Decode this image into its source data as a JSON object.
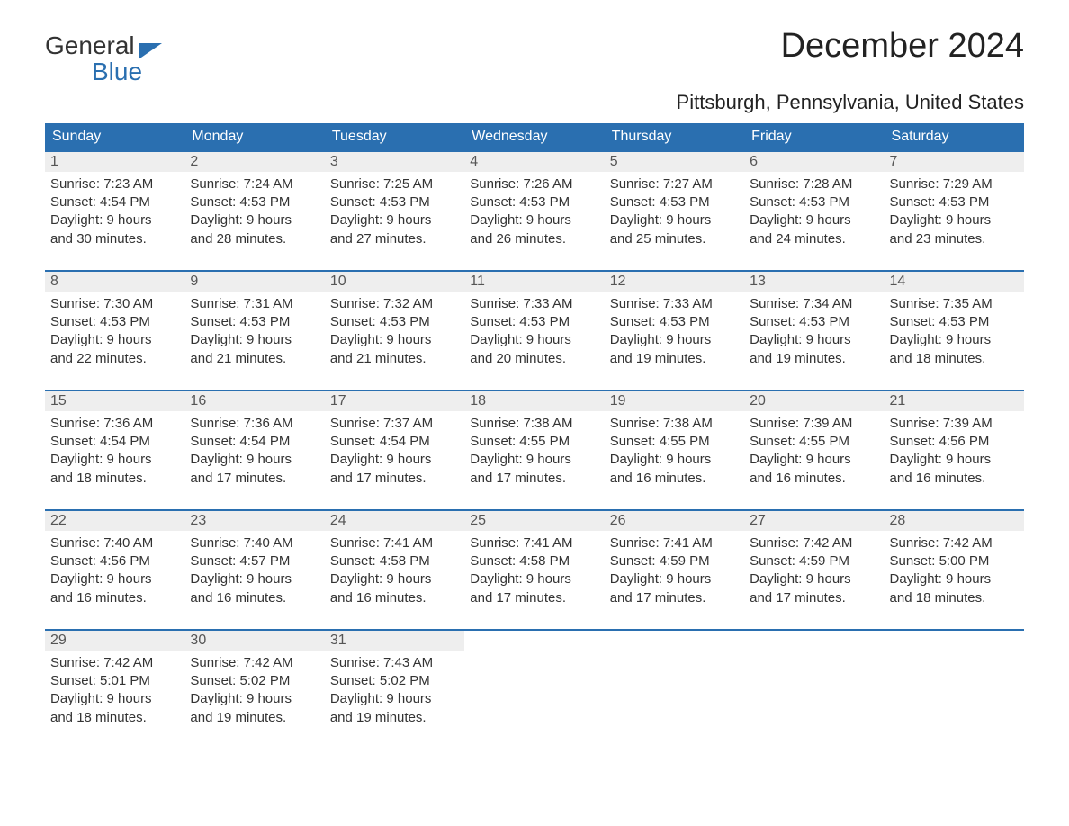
{
  "logo": {
    "line1": "General",
    "line2": "Blue",
    "accent_color": "#2a6fb0"
  },
  "title": "December 2024",
  "location": "Pittsburgh, Pennsylvania, United States",
  "colors": {
    "header_bg": "#2a6fb0",
    "header_text": "#ffffff",
    "daynum_bg": "#eeeeee",
    "daynum_text": "#555555",
    "body_text": "#333333",
    "rule": "#2a6fb0",
    "page_bg": "#ffffff"
  },
  "typography": {
    "title_fontsize": 38,
    "location_fontsize": 22,
    "dayname_fontsize": 16,
    "daynum_fontsize": 16,
    "cell_fontsize": 15
  },
  "day_names": [
    "Sunday",
    "Monday",
    "Tuesday",
    "Wednesday",
    "Thursday",
    "Friday",
    "Saturday"
  ],
  "weeks": [
    [
      {
        "date": "1",
        "sunrise": "Sunrise: 7:23 AM",
        "sunset": "Sunset: 4:54 PM",
        "daylight1": "Daylight: 9 hours",
        "daylight2": "and 30 minutes."
      },
      {
        "date": "2",
        "sunrise": "Sunrise: 7:24 AM",
        "sunset": "Sunset: 4:53 PM",
        "daylight1": "Daylight: 9 hours",
        "daylight2": "and 28 minutes."
      },
      {
        "date": "3",
        "sunrise": "Sunrise: 7:25 AM",
        "sunset": "Sunset: 4:53 PM",
        "daylight1": "Daylight: 9 hours",
        "daylight2": "and 27 minutes."
      },
      {
        "date": "4",
        "sunrise": "Sunrise: 7:26 AM",
        "sunset": "Sunset: 4:53 PM",
        "daylight1": "Daylight: 9 hours",
        "daylight2": "and 26 minutes."
      },
      {
        "date": "5",
        "sunrise": "Sunrise: 7:27 AM",
        "sunset": "Sunset: 4:53 PM",
        "daylight1": "Daylight: 9 hours",
        "daylight2": "and 25 minutes."
      },
      {
        "date": "6",
        "sunrise": "Sunrise: 7:28 AM",
        "sunset": "Sunset: 4:53 PM",
        "daylight1": "Daylight: 9 hours",
        "daylight2": "and 24 minutes."
      },
      {
        "date": "7",
        "sunrise": "Sunrise: 7:29 AM",
        "sunset": "Sunset: 4:53 PM",
        "daylight1": "Daylight: 9 hours",
        "daylight2": "and 23 minutes."
      }
    ],
    [
      {
        "date": "8",
        "sunrise": "Sunrise: 7:30 AM",
        "sunset": "Sunset: 4:53 PM",
        "daylight1": "Daylight: 9 hours",
        "daylight2": "and 22 minutes."
      },
      {
        "date": "9",
        "sunrise": "Sunrise: 7:31 AM",
        "sunset": "Sunset: 4:53 PM",
        "daylight1": "Daylight: 9 hours",
        "daylight2": "and 21 minutes."
      },
      {
        "date": "10",
        "sunrise": "Sunrise: 7:32 AM",
        "sunset": "Sunset: 4:53 PM",
        "daylight1": "Daylight: 9 hours",
        "daylight2": "and 21 minutes."
      },
      {
        "date": "11",
        "sunrise": "Sunrise: 7:33 AM",
        "sunset": "Sunset: 4:53 PM",
        "daylight1": "Daylight: 9 hours",
        "daylight2": "and 20 minutes."
      },
      {
        "date": "12",
        "sunrise": "Sunrise: 7:33 AM",
        "sunset": "Sunset: 4:53 PM",
        "daylight1": "Daylight: 9 hours",
        "daylight2": "and 19 minutes."
      },
      {
        "date": "13",
        "sunrise": "Sunrise: 7:34 AM",
        "sunset": "Sunset: 4:53 PM",
        "daylight1": "Daylight: 9 hours",
        "daylight2": "and 19 minutes."
      },
      {
        "date": "14",
        "sunrise": "Sunrise: 7:35 AM",
        "sunset": "Sunset: 4:53 PM",
        "daylight1": "Daylight: 9 hours",
        "daylight2": "and 18 minutes."
      }
    ],
    [
      {
        "date": "15",
        "sunrise": "Sunrise: 7:36 AM",
        "sunset": "Sunset: 4:54 PM",
        "daylight1": "Daylight: 9 hours",
        "daylight2": "and 18 minutes."
      },
      {
        "date": "16",
        "sunrise": "Sunrise: 7:36 AM",
        "sunset": "Sunset: 4:54 PM",
        "daylight1": "Daylight: 9 hours",
        "daylight2": "and 17 minutes."
      },
      {
        "date": "17",
        "sunrise": "Sunrise: 7:37 AM",
        "sunset": "Sunset: 4:54 PM",
        "daylight1": "Daylight: 9 hours",
        "daylight2": "and 17 minutes."
      },
      {
        "date": "18",
        "sunrise": "Sunrise: 7:38 AM",
        "sunset": "Sunset: 4:55 PM",
        "daylight1": "Daylight: 9 hours",
        "daylight2": "and 17 minutes."
      },
      {
        "date": "19",
        "sunrise": "Sunrise: 7:38 AM",
        "sunset": "Sunset: 4:55 PM",
        "daylight1": "Daylight: 9 hours",
        "daylight2": "and 16 minutes."
      },
      {
        "date": "20",
        "sunrise": "Sunrise: 7:39 AM",
        "sunset": "Sunset: 4:55 PM",
        "daylight1": "Daylight: 9 hours",
        "daylight2": "and 16 minutes."
      },
      {
        "date": "21",
        "sunrise": "Sunrise: 7:39 AM",
        "sunset": "Sunset: 4:56 PM",
        "daylight1": "Daylight: 9 hours",
        "daylight2": "and 16 minutes."
      }
    ],
    [
      {
        "date": "22",
        "sunrise": "Sunrise: 7:40 AM",
        "sunset": "Sunset: 4:56 PM",
        "daylight1": "Daylight: 9 hours",
        "daylight2": "and 16 minutes."
      },
      {
        "date": "23",
        "sunrise": "Sunrise: 7:40 AM",
        "sunset": "Sunset: 4:57 PM",
        "daylight1": "Daylight: 9 hours",
        "daylight2": "and 16 minutes."
      },
      {
        "date": "24",
        "sunrise": "Sunrise: 7:41 AM",
        "sunset": "Sunset: 4:58 PM",
        "daylight1": "Daylight: 9 hours",
        "daylight2": "and 16 minutes."
      },
      {
        "date": "25",
        "sunrise": "Sunrise: 7:41 AM",
        "sunset": "Sunset: 4:58 PM",
        "daylight1": "Daylight: 9 hours",
        "daylight2": "and 17 minutes."
      },
      {
        "date": "26",
        "sunrise": "Sunrise: 7:41 AM",
        "sunset": "Sunset: 4:59 PM",
        "daylight1": "Daylight: 9 hours",
        "daylight2": "and 17 minutes."
      },
      {
        "date": "27",
        "sunrise": "Sunrise: 7:42 AM",
        "sunset": "Sunset: 4:59 PM",
        "daylight1": "Daylight: 9 hours",
        "daylight2": "and 17 minutes."
      },
      {
        "date": "28",
        "sunrise": "Sunrise: 7:42 AM",
        "sunset": "Sunset: 5:00 PM",
        "daylight1": "Daylight: 9 hours",
        "daylight2": "and 18 minutes."
      }
    ],
    [
      {
        "date": "29",
        "sunrise": "Sunrise: 7:42 AM",
        "sunset": "Sunset: 5:01 PM",
        "daylight1": "Daylight: 9 hours",
        "daylight2": "and 18 minutes."
      },
      {
        "date": "30",
        "sunrise": "Sunrise: 7:42 AM",
        "sunset": "Sunset: 5:02 PM",
        "daylight1": "Daylight: 9 hours",
        "daylight2": "and 19 minutes."
      },
      {
        "date": "31",
        "sunrise": "Sunrise: 7:43 AM",
        "sunset": "Sunset: 5:02 PM",
        "daylight1": "Daylight: 9 hours",
        "daylight2": "and 19 minutes."
      },
      null,
      null,
      null,
      null
    ]
  ]
}
